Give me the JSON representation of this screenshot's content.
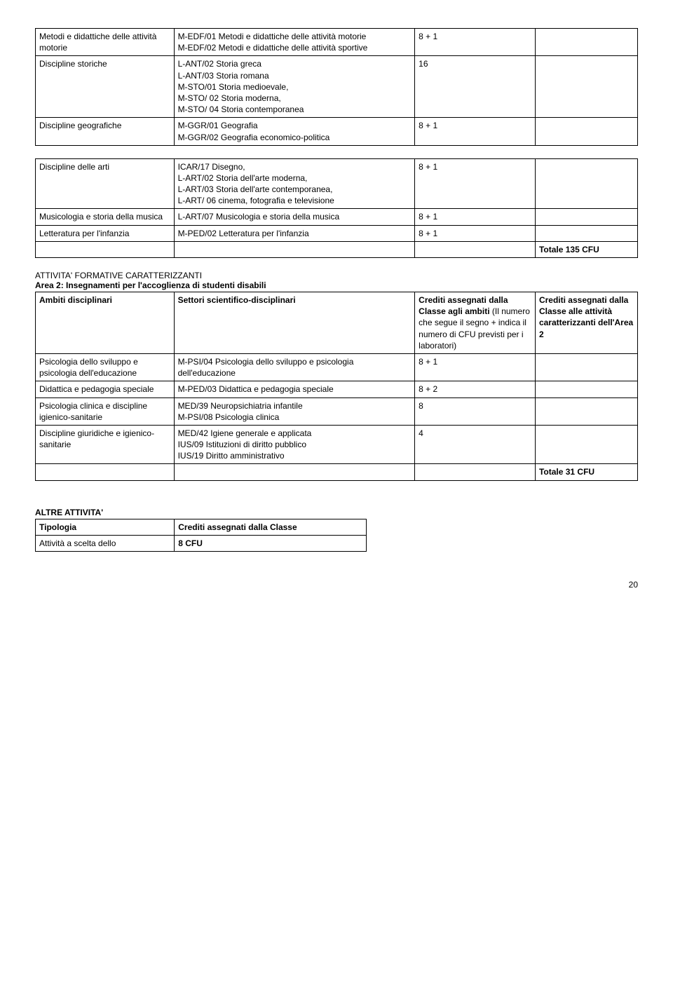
{
  "table1": {
    "rows": [
      {
        "c1": "Metodi e didattiche delle attività motorie",
        "c2": "M-EDF/01 Metodi e didattiche delle attività motorie\nM-EDF/02 Metodi e didattiche delle attività sportive",
        "c3": "8 + 1",
        "c4": ""
      },
      {
        "c1": "Discipline storiche",
        "c2": "L-ANT/02 Storia greca\nL-ANT/03 Storia romana\nM-STO/01 Storia medioevale,\nM-STO/ 02 Storia moderna,\nM-STO/ 04 Storia contemporanea",
        "c3": "16",
        "c4": ""
      },
      {
        "c1": "Discipline geografiche",
        "c2": "M-GGR/01 Geografia\nM-GGR/02 Geografia economico-politica",
        "c3": "8 + 1",
        "c4": ""
      }
    ]
  },
  "table2": {
    "rows": [
      {
        "c1": "Discipline delle arti",
        "c2": "ICAR/17 Disegno,\n L-ART/02 Storia dell'arte moderna,\nL-ART/03 Storia dell'arte contemporanea,\n L-ART/ 06 cinema, fotografia e televisione",
        "c3": "8 + 1",
        "c4": ""
      },
      {
        "c1": "Musicologia e storia della musica",
        "c2": "L-ART/07 Musicologia e storia della musica",
        "c3": "8 + 1",
        "c4": ""
      },
      {
        "c1": "Letteratura per l'infanzia",
        "c2": "M-PED/02 Letteratura per l'infanzia",
        "c3": "8 + 1",
        "c4": ""
      },
      {
        "c1": "",
        "c2": "",
        "c3": "",
        "c4": "Totale 135 CFU",
        "c4bold": true
      }
    ]
  },
  "section2": {
    "line1": "ATTIVITA' FORMATIVE CARATTERIZZANTI",
    "line2": "Area 2: Insegnamenti per l'accoglienza di studenti disabili"
  },
  "table3": {
    "header": {
      "c1": "Ambiti disciplinari",
      "c2": "Settori scientifico-disciplinari",
      "c3_bold": "Crediti assegnati dalla Classe agli ambiti",
      "c3_rest": " (Il numero che segue il segno + indica il numero di CFU previsti per i laboratori)",
      "c4": "Crediti assegnati dalla Classe alle attività caratterizzanti dell'Area 2"
    },
    "rows": [
      {
        "c1": "Psicologia dello sviluppo e psicologia dell'educazione",
        "c2": "M-PSI/04 Psicologia dello sviluppo e psicologia dell'educazione",
        "c3": "8 + 1",
        "c4": ""
      },
      {
        "c1": "Didattica e pedagogia speciale",
        "c2": "M-PED/03 Didattica e pedagogia speciale",
        "c3": "8 + 2",
        "c4": ""
      },
      {
        "c1": "Psicologia clinica e discipline igienico-sanitarie",
        "c2": "MED/39 Neuropsichiatria infantile\nM-PSI/08 Psicologia clinica",
        "c3": "8",
        "c4": ""
      },
      {
        "c1": "Discipline giuridiche e igienico-sanitarie",
        "c2": "MED/42 Igiene generale e applicata\nIUS/09 Istituzioni di diritto pubblico\nIUS/19 Diritto amministrativo",
        "c3": "4",
        "c4": ""
      },
      {
        "c1": "",
        "c2": "",
        "c3": "",
        "c4": "Totale 31 CFU",
        "c4bold": true
      }
    ]
  },
  "altre": {
    "title": "ALTRE ATTIVITA'",
    "header": {
      "c1": "Tipologia",
      "c2": "Crediti assegnati dalla Classe"
    },
    "row": {
      "c1": "Attività a scelta dello",
      "c2": "8 CFU"
    }
  },
  "pagenum": "20"
}
